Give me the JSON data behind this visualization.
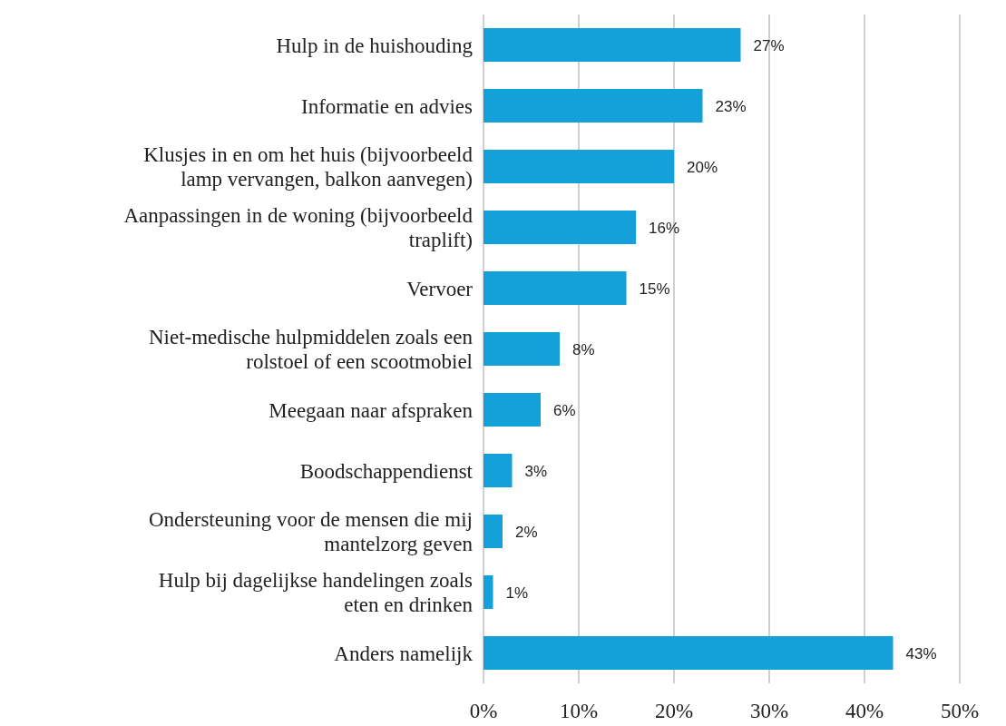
{
  "chart_data": {
    "type": "bar",
    "orientation": "horizontal",
    "categories": [
      "Hulp in de huishouding",
      "Informatie en advies",
      "Klusjes in en om het huis (bijvoorbeeld lamp vervangen, balkon aanvegen)",
      "Aanpassingen in de woning (bijvoorbeeld traplift)",
      "Vervoer",
      "Niet-medische hulpmiddelen zoals een rolstoel of een scootmobiel",
      "Meegaan naar afspraken",
      "Boodschappendienst",
      "Ondersteuning voor de mensen die mij mantelzorg geven",
      "Hulp bij dagelijkse handelingen zoals eten en drinken",
      "Anders namelijk"
    ],
    "values": [
      27,
      23,
      20,
      16,
      15,
      8,
      6,
      3,
      2,
      1,
      43
    ],
    "value_labels": [
      "27%",
      "23%",
      "20%",
      "16%",
      "15%",
      "8%",
      "6%",
      "3%",
      "2%",
      "1%",
      "43%"
    ],
    "color": "#14a0d8",
    "xlim": [
      0,
      50
    ],
    "xticks": [
      {
        "value": 0,
        "label": "0%"
      },
      {
        "value": 10,
        "label": "10%"
      },
      {
        "value": 20,
        "label": "20%"
      },
      {
        "value": 30,
        "label": "30%"
      },
      {
        "value": 40,
        "label": "40%"
      },
      {
        "value": 50,
        "label": "50%"
      }
    ],
    "grid": "x"
  }
}
